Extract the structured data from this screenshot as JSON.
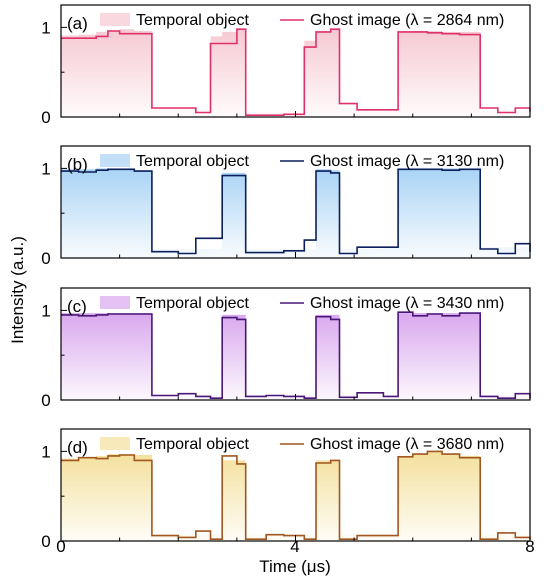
{
  "figure": {
    "ylabel": "Intensity (a.u.)",
    "xlabel": "Time (μs)",
    "x_ticks": [
      "0",
      "4",
      "8"
    ],
    "xlim": [
      0,
      8
    ]
  },
  "chart_data": [
    {
      "type": "line",
      "panel_label": "(a)",
      "xlim": [
        0,
        8
      ],
      "ylim": [
        0,
        1.25
      ],
      "yticks": [
        "0",
        "1"
      ],
      "legend_position": "top",
      "fill_color": "#f6c9d2",
      "line_color": "#e0306a",
      "series": [
        {
          "name": "Temporal object",
          "kind": "filled step",
          "x": [
            0.0,
            0.3,
            0.6,
            0.8,
            1.0,
            1.25,
            1.55,
            2.0,
            2.3,
            2.55,
            2.75,
            3.0,
            3.15,
            3.5,
            3.8,
            4.15,
            4.35,
            4.6,
            4.75,
            5.05,
            5.5,
            5.75,
            6.0,
            6.25,
            6.5,
            6.8,
            7.15,
            7.45,
            7.75,
            8.0
          ],
          "values": [
            0.91,
            0.92,
            0.95,
            0.97,
            0.98,
            0.96,
            0.1,
            0.09,
            0.08,
            0.9,
            0.95,
            0.98,
            0.05,
            0.05,
            0.05,
            0.85,
            0.95,
            0.98,
            0.1,
            0.08,
            0.07,
            0.95,
            0.96,
            0.96,
            0.95,
            0.95,
            0.07,
            0.08,
            0.07,
            0.07
          ]
        },
        {
          "name": "Ghost image (λ = 2864 nm)",
          "kind": "step",
          "x": [
            0.0,
            0.3,
            0.6,
            0.8,
            1.0,
            1.25,
            1.55,
            2.0,
            2.3,
            2.55,
            2.75,
            3.0,
            3.15,
            3.5,
            3.8,
            4.15,
            4.35,
            4.6,
            4.75,
            5.05,
            5.5,
            5.75,
            6.0,
            6.25,
            6.5,
            6.8,
            7.15,
            7.45,
            7.75,
            8.0
          ],
          "values": [
            0.88,
            0.88,
            0.9,
            0.96,
            0.93,
            0.93,
            0.1,
            0.1,
            0.05,
            0.82,
            0.82,
            0.98,
            0.02,
            0.02,
            0.03,
            0.78,
            0.95,
            0.98,
            0.15,
            0.08,
            0.08,
            0.95,
            0.95,
            0.94,
            0.93,
            0.92,
            0.1,
            0.05,
            0.1,
            0.06
          ]
        }
      ]
    },
    {
      "type": "line",
      "panel_label": "(b)",
      "xlim": [
        0,
        8
      ],
      "ylim": [
        0,
        1.25
      ],
      "yticks": [
        "0",
        "1"
      ],
      "legend_position": "top",
      "fill_color": "#a9d3f5",
      "line_color": "#0b1f5c",
      "series": [
        {
          "name": "Temporal object",
          "kind": "filled step",
          "x": [
            0.0,
            0.3,
            0.6,
            0.8,
            1.0,
            1.25,
            1.55,
            2.0,
            2.3,
            2.55,
            2.75,
            3.0,
            3.15,
            3.5,
            3.8,
            4.15,
            4.35,
            4.6,
            4.75,
            5.05,
            5.5,
            5.75,
            6.0,
            6.25,
            6.5,
            6.8,
            7.15,
            7.45,
            7.75,
            8.0
          ],
          "values": [
            0.99,
            0.99,
            1.0,
            1.0,
            1.0,
            0.98,
            0.1,
            0.1,
            0.1,
            0.1,
            0.95,
            0.95,
            0.1,
            0.1,
            0.1,
            0.1,
            0.99,
            0.98,
            0.1,
            0.1,
            0.12,
            1.0,
            1.0,
            1.0,
            1.0,
            1.0,
            0.12,
            0.12,
            0.12,
            0.1
          ]
        },
        {
          "name": "Ghost image (λ = 3130 nm)",
          "kind": "step",
          "x": [
            0.0,
            0.3,
            0.6,
            0.8,
            1.0,
            1.25,
            1.55,
            2.0,
            2.3,
            2.55,
            2.75,
            3.0,
            3.15,
            3.5,
            3.8,
            4.15,
            4.35,
            4.6,
            4.75,
            5.05,
            5.5,
            5.75,
            6.0,
            6.25,
            6.5,
            6.8,
            7.15,
            7.45,
            7.75,
            8.0
          ],
          "values": [
            0.97,
            0.96,
            0.98,
            0.99,
            0.99,
            0.97,
            0.07,
            0.05,
            0.22,
            0.22,
            0.92,
            0.92,
            0.06,
            0.06,
            0.08,
            0.2,
            0.97,
            0.95,
            0.05,
            0.12,
            0.12,
            0.99,
            0.99,
            0.99,
            0.98,
            0.99,
            0.1,
            0.05,
            0.16,
            0.07
          ]
        }
      ]
    },
    {
      "type": "line",
      "panel_label": "(c)",
      "xlim": [
        0,
        8
      ],
      "ylim": [
        0,
        1.25
      ],
      "yticks": [
        "0",
        "1"
      ],
      "legend_position": "top",
      "fill_color": "#d9a8ee",
      "line_color": "#4a1778",
      "series": [
        {
          "name": "Temporal object",
          "kind": "filled step",
          "x": [
            0.0,
            0.3,
            0.6,
            0.8,
            1.0,
            1.25,
            1.55,
            2.0,
            2.3,
            2.55,
            2.75,
            3.0,
            3.15,
            3.5,
            3.8,
            4.15,
            4.35,
            4.6,
            4.75,
            5.05,
            5.5,
            5.75,
            6.0,
            6.25,
            6.5,
            6.8,
            7.15,
            7.45,
            7.75,
            8.0
          ],
          "values": [
            0.97,
            0.97,
            0.97,
            0.97,
            0.97,
            0.97,
            0.05,
            0.05,
            0.05,
            0.05,
            0.95,
            0.95,
            0.05,
            0.05,
            0.05,
            0.05,
            0.95,
            0.95,
            0.05,
            0.05,
            0.05,
            0.97,
            0.97,
            0.97,
            0.97,
            0.97,
            0.05,
            0.05,
            0.05,
            0.05
          ]
        },
        {
          "name": "Ghost image (λ = 3430 nm)",
          "kind": "step",
          "x": [
            0.0,
            0.3,
            0.6,
            0.8,
            1.0,
            1.25,
            1.55,
            2.0,
            2.3,
            2.55,
            2.75,
            3.0,
            3.15,
            3.5,
            3.8,
            4.15,
            4.35,
            4.6,
            4.75,
            5.05,
            5.5,
            5.75,
            6.0,
            6.25,
            6.5,
            6.8,
            7.15,
            7.45,
            7.75,
            8.0
          ],
          "values": [
            0.95,
            0.94,
            0.95,
            0.96,
            0.96,
            0.96,
            0.05,
            0.07,
            0.04,
            0.02,
            0.92,
            0.9,
            0.04,
            0.05,
            0.04,
            0.02,
            0.93,
            0.9,
            0.03,
            0.08,
            0.04,
            0.98,
            0.94,
            0.96,
            0.94,
            0.97,
            0.04,
            0.02,
            0.07,
            0.02
          ]
        }
      ]
    },
    {
      "type": "line",
      "panel_label": "(d)",
      "xlim": [
        0,
        8
      ],
      "ylim": [
        0,
        1.25
      ],
      "yticks": [
        "0",
        "1"
      ],
      "legend_position": "top",
      "fill_color": "#f3e09c",
      "line_color": "#a0561e",
      "series": [
        {
          "name": "Temporal object",
          "kind": "filled step",
          "x": [
            0.0,
            0.3,
            0.6,
            0.8,
            1.0,
            1.25,
            1.55,
            2.0,
            2.3,
            2.55,
            2.75,
            3.0,
            3.15,
            3.5,
            3.8,
            4.15,
            4.35,
            4.6,
            4.75,
            5.05,
            5.5,
            5.75,
            6.0,
            6.25,
            6.5,
            6.8,
            7.15,
            7.45,
            7.75,
            8.0
          ],
          "values": [
            0.92,
            0.93,
            0.95,
            0.97,
            0.97,
            0.96,
            0.07,
            0.07,
            0.07,
            0.07,
            0.9,
            0.9,
            0.07,
            0.07,
            0.07,
            0.07,
            0.9,
            0.9,
            0.07,
            0.07,
            0.07,
            0.95,
            0.97,
            0.99,
            0.97,
            0.95,
            0.07,
            0.07,
            0.07,
            0.07
          ]
        },
        {
          "name": "Ghost image (λ = 3680 nm)",
          "kind": "step",
          "x": [
            0.0,
            0.3,
            0.6,
            0.8,
            1.0,
            1.25,
            1.55,
            2.0,
            2.3,
            2.55,
            2.75,
            3.0,
            3.15,
            3.5,
            3.8,
            4.15,
            4.35,
            4.6,
            4.75,
            5.05,
            5.5,
            5.75,
            6.0,
            6.25,
            6.5,
            6.8,
            7.15,
            7.45,
            7.75,
            8.0
          ],
          "values": [
            0.9,
            0.93,
            0.92,
            0.95,
            0.96,
            0.9,
            0.06,
            0.04,
            0.11,
            0.02,
            0.95,
            0.86,
            0.02,
            0.07,
            0.06,
            0.02,
            0.87,
            0.9,
            0.02,
            0.06,
            0.06,
            0.94,
            0.97,
            1.0,
            0.97,
            0.93,
            0.02,
            0.09,
            0.04,
            0.02
          ]
        }
      ]
    }
  ]
}
